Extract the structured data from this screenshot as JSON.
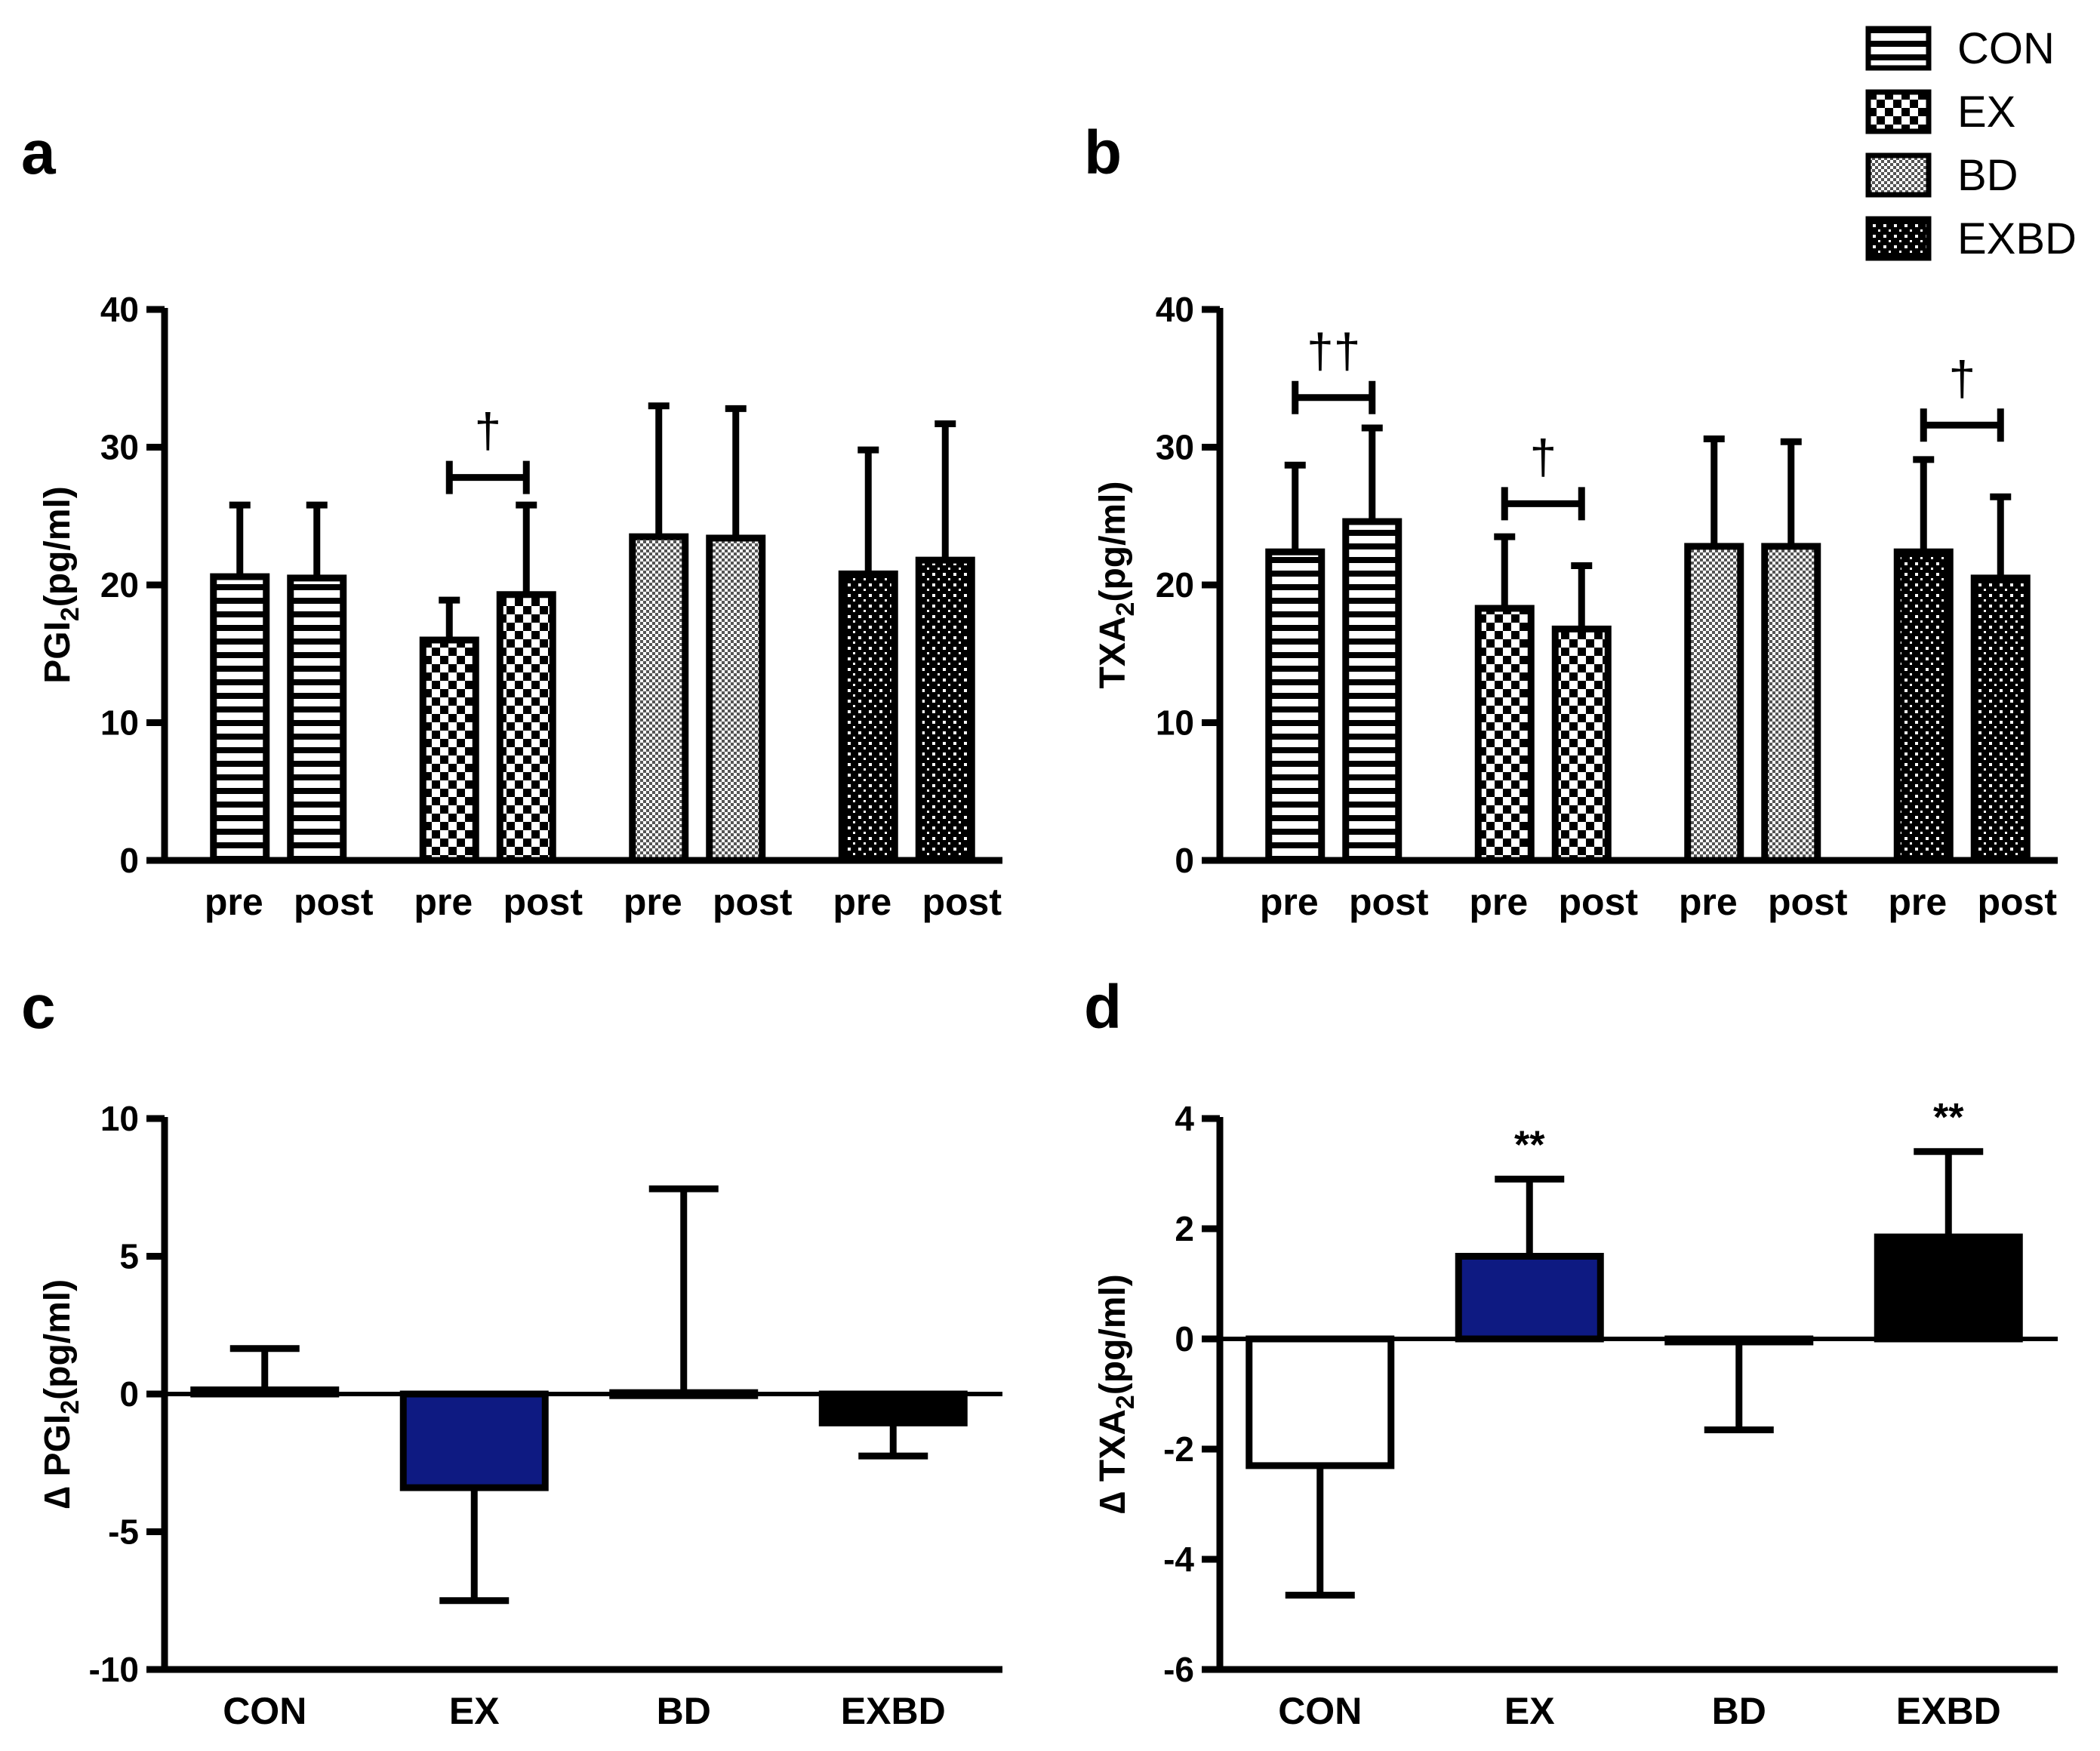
{
  "colors": {
    "axis": "#000000",
    "ex_delta_fill": "#0e1a82",
    "exbd_delta_fill": "#000000",
    "con_delta_fill": "#ffffff",
    "bd_delta_fill": "#ffffff"
  },
  "legend": [
    {
      "label": "CON",
      "pattern": "horizontal-stripes"
    },
    {
      "label": "EX",
      "pattern": "checkerboard"
    },
    {
      "label": "BD",
      "pattern": "fine-dots"
    },
    {
      "label": "EXBD",
      "pattern": "dark-dots"
    }
  ],
  "chart_data": [
    {
      "panel": "a",
      "type": "bar",
      "ylabel_main": "PGI",
      "ylabel_sub": "2",
      "ylabel_tail": "(pg/ml)",
      "ylim": [
        0,
        40
      ],
      "yticks": [
        "0",
        "10",
        "20",
        "30",
        "40"
      ],
      "ytick_values": [
        0,
        10,
        20,
        30,
        40
      ],
      "groups": [
        {
          "name": "CON",
          "pattern": "horizontal-stripes",
          "labels": [
            "pre",
            "post"
          ],
          "values": [
            20.6,
            20.5
          ],
          "errors": [
            5.2,
            5.3
          ]
        },
        {
          "name": "EX",
          "pattern": "checkerboard",
          "labels": [
            "pre",
            "post"
          ],
          "values": [
            16.0,
            19.3
          ],
          "errors": [
            2.9,
            6.5
          ]
        },
        {
          "name": "BD",
          "pattern": "fine-dots",
          "labels": [
            "pre",
            "post"
          ],
          "values": [
            23.5,
            23.4
          ],
          "errors": [
            9.5,
            9.4
          ]
        },
        {
          "name": "EXBD",
          "pattern": "dark-dots",
          "labels": [
            "pre",
            "post"
          ],
          "values": [
            20.8,
            21.8
          ],
          "errors": [
            9.0,
            9.9
          ]
        }
      ],
      "annotations": [
        {
          "group": 1,
          "symbol": "†",
          "bracket_y": 27.8
        }
      ]
    },
    {
      "panel": "b",
      "type": "bar",
      "ylabel_main": "TXA",
      "ylabel_sub": "2",
      "ylabel_tail": "(pg/ml)",
      "ylim": [
        0,
        40
      ],
      "yticks": [
        "0",
        "10",
        "20",
        "30",
        "40"
      ],
      "ytick_values": [
        0,
        10,
        20,
        30,
        40
      ],
      "groups": [
        {
          "name": "CON",
          "pattern": "horizontal-stripes",
          "labels": [
            "pre",
            "post"
          ],
          "values": [
            22.4,
            24.6
          ],
          "errors": [
            6.3,
            6.8
          ]
        },
        {
          "name": "EX",
          "pattern": "checkerboard",
          "labels": [
            "pre",
            "post"
          ],
          "values": [
            18.3,
            16.8
          ],
          "errors": [
            5.2,
            4.6
          ]
        },
        {
          "name": "BD",
          "pattern": "fine-dots",
          "labels": [
            "pre",
            "post"
          ],
          "values": [
            22.8,
            22.8
          ],
          "errors": [
            7.8,
            7.6
          ]
        },
        {
          "name": "EXBD",
          "pattern": "dark-dots",
          "labels": [
            "pre",
            "post"
          ],
          "values": [
            22.4,
            20.5
          ],
          "errors": [
            6.7,
            5.9
          ]
        }
      ],
      "annotations": [
        {
          "group": 0,
          "symbol": "††",
          "bracket_y": 33.6
        },
        {
          "group": 1,
          "symbol": "†",
          "bracket_y": 25.9
        },
        {
          "group": 3,
          "symbol": "†",
          "bracket_y": 31.6
        }
      ]
    },
    {
      "panel": "c",
      "type": "bar",
      "ylabel_main": "∆ PGI",
      "ylabel_sub": "2",
      "ylabel_tail": "(pg/ml)",
      "ylim": [
        -10,
        10
      ],
      "yticks": [
        "-10",
        "-5",
        "0",
        "5",
        "10"
      ],
      "ytick_values": [
        -10,
        -5,
        0,
        5,
        10
      ],
      "categories": [
        "CON",
        "EX",
        "BD",
        "EXBD"
      ],
      "values": [
        0.15,
        -3.4,
        0.05,
        -1.05
      ],
      "errors": [
        1.5,
        4.1,
        7.4,
        1.2
      ],
      "annotations": []
    },
    {
      "panel": "d",
      "type": "bar",
      "ylabel_main": "∆ TXA",
      "ylabel_sub": "2",
      "ylabel_tail": "(pg/ml)",
      "ylim": [
        -6,
        4
      ],
      "yticks": [
        "-6",
        "-4",
        "-2",
        "0",
        "2",
        "4"
      ],
      "ytick_values": [
        -6,
        -4,
        -2,
        0,
        2,
        4
      ],
      "categories": [
        "CON",
        "EX",
        "BD",
        "EXBD"
      ],
      "values": [
        -2.3,
        1.5,
        -0.05,
        1.85
      ],
      "errors": [
        2.35,
        1.4,
        1.6,
        1.55
      ],
      "annotations": [
        {
          "category": 1,
          "symbol": "**"
        },
        {
          "category": 3,
          "symbol": "**"
        }
      ]
    }
  ]
}
